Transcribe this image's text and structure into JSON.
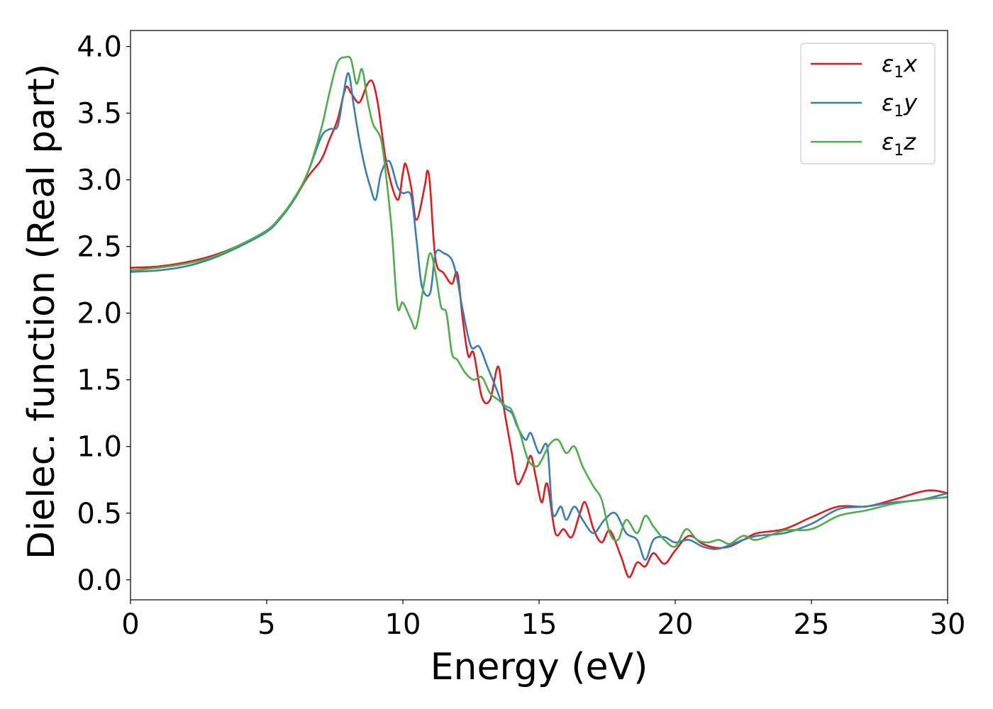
{
  "chart_data": {
    "type": "line",
    "title": "",
    "xlabel": "Energy (eV)",
    "ylabel": "Dielec. function (Real part)",
    "xlim": [
      0,
      30
    ],
    "ylim": [
      -0.15,
      4.12
    ],
    "xticks": [
      0,
      5,
      10,
      15,
      20,
      25,
      30
    ],
    "xtick_labels": [
      "0",
      "5",
      "10",
      "15",
      "20",
      "25",
      "30"
    ],
    "yticks": [
      0.0,
      0.5,
      1.0,
      1.5,
      2.0,
      2.5,
      3.0,
      3.5,
      4.0
    ],
    "ytick_labels": [
      "0.0",
      "0.5",
      "1.0",
      "1.5",
      "2.0",
      "2.5",
      "3.0",
      "3.5",
      "4.0"
    ],
    "grid": false,
    "legend_position": "top-right",
    "series": [
      {
        "name": "ε1x",
        "legend_base": "ε",
        "legend_sub": "1",
        "legend_tail": "x",
        "color": "#e41a1c",
        "points": [
          [
            0,
            2.34
          ],
          [
            1,
            2.35
          ],
          [
            2,
            2.38
          ],
          [
            3,
            2.43
          ],
          [
            4,
            2.51
          ],
          [
            5,
            2.62
          ],
          [
            5.5,
            2.72
          ],
          [
            6,
            2.85
          ],
          [
            6.5,
            3.02
          ],
          [
            7,
            3.15
          ],
          [
            7.3,
            3.3
          ],
          [
            7.6,
            3.45
          ],
          [
            7.9,
            3.69
          ],
          [
            8.1,
            3.65
          ],
          [
            8.4,
            3.58
          ],
          [
            8.7,
            3.72
          ],
          [
            8.9,
            3.73
          ],
          [
            9.1,
            3.55
          ],
          [
            9.4,
            3.12
          ],
          [
            9.8,
            2.85
          ],
          [
            10.0,
            3.05
          ],
          [
            10.1,
            3.12
          ],
          [
            10.3,
            2.95
          ],
          [
            10.5,
            2.7
          ],
          [
            10.8,
            2.95
          ],
          [
            10.9,
            3.07
          ],
          [
            11.0,
            2.95
          ],
          [
            11.2,
            2.4
          ],
          [
            11.5,
            2.3
          ],
          [
            11.8,
            2.22
          ],
          [
            12.0,
            2.3
          ],
          [
            12.2,
            1.95
          ],
          [
            12.4,
            1.68
          ],
          [
            12.6,
            1.7
          ],
          [
            12.9,
            1.37
          ],
          [
            13.2,
            1.35
          ],
          [
            13.5,
            1.6
          ],
          [
            13.7,
            1.3
          ],
          [
            14.0,
            0.95
          ],
          [
            14.2,
            0.72
          ],
          [
            14.5,
            0.82
          ],
          [
            14.7,
            0.93
          ],
          [
            14.9,
            0.75
          ],
          [
            15.1,
            0.58
          ],
          [
            15.3,
            0.72
          ],
          [
            15.6,
            0.35
          ],
          [
            15.9,
            0.38
          ],
          [
            16.2,
            0.32
          ],
          [
            16.5,
            0.5
          ],
          [
            16.7,
            0.58
          ],
          [
            17.0,
            0.38
          ],
          [
            17.3,
            0.28
          ],
          [
            17.6,
            0.37
          ],
          [
            18.0,
            0.18
          ],
          [
            18.3,
            0.02
          ],
          [
            18.6,
            0.13
          ],
          [
            18.9,
            0.1
          ],
          [
            19.2,
            0.2
          ],
          [
            19.6,
            0.12
          ],
          [
            20.0,
            0.22
          ],
          [
            20.5,
            0.33
          ],
          [
            21.0,
            0.27
          ],
          [
            21.5,
            0.24
          ],
          [
            22.0,
            0.25
          ],
          [
            22.5,
            0.3
          ],
          [
            23.0,
            0.35
          ],
          [
            24.0,
            0.38
          ],
          [
            25.0,
            0.47
          ],
          [
            26.0,
            0.55
          ],
          [
            27.0,
            0.55
          ],
          [
            28.0,
            0.6
          ],
          [
            29.0,
            0.66
          ],
          [
            29.5,
            0.67
          ],
          [
            30.0,
            0.65
          ]
        ]
      },
      {
        "name": "ε1y",
        "legend_base": "ε",
        "legend_sub": "1",
        "legend_tail": "y",
        "color": "#377eb8",
        "points": [
          [
            0,
            2.31
          ],
          [
            1,
            2.32
          ],
          [
            2,
            2.35
          ],
          [
            3,
            2.41
          ],
          [
            4,
            2.5
          ],
          [
            5,
            2.61
          ],
          [
            5.5,
            2.71
          ],
          [
            6,
            2.85
          ],
          [
            6.5,
            3.05
          ],
          [
            7.0,
            3.32
          ],
          [
            7.3,
            3.38
          ],
          [
            7.6,
            3.4
          ],
          [
            7.8,
            3.62
          ],
          [
            8.0,
            3.8
          ],
          [
            8.2,
            3.55
          ],
          [
            8.4,
            3.3
          ],
          [
            8.6,
            3.1
          ],
          [
            8.8,
            2.95
          ],
          [
            9.0,
            2.85
          ],
          [
            9.2,
            3.05
          ],
          [
            9.5,
            3.14
          ],
          [
            9.8,
            2.95
          ],
          [
            10.0,
            2.9
          ],
          [
            10.3,
            2.88
          ],
          [
            10.5,
            2.55
          ],
          [
            10.7,
            2.2
          ],
          [
            11.0,
            2.15
          ],
          [
            11.2,
            2.45
          ],
          [
            11.5,
            2.45
          ],
          [
            11.8,
            2.4
          ],
          [
            12.0,
            2.25
          ],
          [
            12.2,
            2.02
          ],
          [
            12.5,
            1.75
          ],
          [
            12.8,
            1.75
          ],
          [
            13.1,
            1.6
          ],
          [
            13.4,
            1.45
          ],
          [
            13.7,
            1.3
          ],
          [
            14.0,
            1.25
          ],
          [
            14.2,
            1.15
          ],
          [
            14.5,
            1.05
          ],
          [
            14.7,
            1.1
          ],
          [
            15.0,
            0.95
          ],
          [
            15.3,
            1.0
          ],
          [
            15.5,
            0.5
          ],
          [
            15.8,
            0.55
          ],
          [
            16.0,
            0.45
          ],
          [
            16.3,
            0.55
          ],
          [
            16.6,
            0.45
          ],
          [
            17.0,
            0.35
          ],
          [
            17.4,
            0.45
          ],
          [
            17.8,
            0.5
          ],
          [
            18.2,
            0.35
          ],
          [
            18.6,
            0.3
          ],
          [
            18.9,
            0.15
          ],
          [
            19.2,
            0.3
          ],
          [
            19.6,
            0.32
          ],
          [
            20.0,
            0.28
          ],
          [
            20.5,
            0.3
          ],
          [
            21.0,
            0.25
          ],
          [
            21.5,
            0.23
          ],
          [
            22.0,
            0.26
          ],
          [
            22.5,
            0.3
          ],
          [
            23.0,
            0.33
          ],
          [
            24.0,
            0.35
          ],
          [
            25.0,
            0.42
          ],
          [
            26.0,
            0.53
          ],
          [
            27.0,
            0.55
          ],
          [
            28.0,
            0.58
          ],
          [
            29.0,
            0.6
          ],
          [
            30.0,
            0.65
          ]
        ]
      },
      {
        "name": "ε1z",
        "legend_base": "ε",
        "legend_sub": "1",
        "legend_tail": "z",
        "color": "#4daf4a",
        "points": [
          [
            0,
            2.32
          ],
          [
            1,
            2.34
          ],
          [
            2,
            2.37
          ],
          [
            3,
            2.42
          ],
          [
            4,
            2.51
          ],
          [
            5,
            2.62
          ],
          [
            5.5,
            2.72
          ],
          [
            6,
            2.86
          ],
          [
            6.5,
            3.05
          ],
          [
            7.0,
            3.38
          ],
          [
            7.3,
            3.65
          ],
          [
            7.6,
            3.88
          ],
          [
            7.9,
            3.92
          ],
          [
            8.1,
            3.9
          ],
          [
            8.3,
            3.72
          ],
          [
            8.5,
            3.83
          ],
          [
            8.7,
            3.6
          ],
          [
            8.9,
            3.42
          ],
          [
            9.2,
            3.3
          ],
          [
            9.4,
            3.0
          ],
          [
            9.6,
            2.6
          ],
          [
            9.8,
            2.05
          ],
          [
            10.0,
            2.08
          ],
          [
            10.3,
            1.95
          ],
          [
            10.5,
            1.9
          ],
          [
            10.8,
            2.25
          ],
          [
            11.0,
            2.45
          ],
          [
            11.2,
            2.3
          ],
          [
            11.4,
            2.05
          ],
          [
            11.6,
            2.0
          ],
          [
            11.8,
            1.7
          ],
          [
            12.0,
            1.65
          ],
          [
            12.3,
            1.55
          ],
          [
            12.6,
            1.5
          ],
          [
            12.9,
            1.52
          ],
          [
            13.2,
            1.4
          ],
          [
            13.5,
            1.35
          ],
          [
            13.8,
            1.3
          ],
          [
            14.0,
            1.27
          ],
          [
            14.3,
            1.1
          ],
          [
            14.6,
            0.9
          ],
          [
            14.9,
            0.85
          ],
          [
            15.1,
            0.9
          ],
          [
            15.4,
            1.02
          ],
          [
            15.7,
            1.05
          ],
          [
            16.0,
            0.95
          ],
          [
            16.3,
            1.0
          ],
          [
            16.6,
            0.85
          ],
          [
            17.0,
            0.7
          ],
          [
            17.3,
            0.6
          ],
          [
            17.6,
            0.35
          ],
          [
            17.9,
            0.3
          ],
          [
            18.2,
            0.45
          ],
          [
            18.6,
            0.35
          ],
          [
            18.9,
            0.48
          ],
          [
            19.2,
            0.4
          ],
          [
            19.6,
            0.3
          ],
          [
            20.0,
            0.25
          ],
          [
            20.4,
            0.38
          ],
          [
            20.8,
            0.3
          ],
          [
            21.2,
            0.28
          ],
          [
            21.6,
            0.3
          ],
          [
            22.0,
            0.27
          ],
          [
            22.5,
            0.33
          ],
          [
            23.0,
            0.3
          ],
          [
            24.0,
            0.37
          ],
          [
            25.0,
            0.38
          ],
          [
            26.0,
            0.48
          ],
          [
            27.0,
            0.52
          ],
          [
            28.0,
            0.57
          ],
          [
            29.0,
            0.6
          ],
          [
            30.0,
            0.62
          ]
        ]
      }
    ]
  }
}
